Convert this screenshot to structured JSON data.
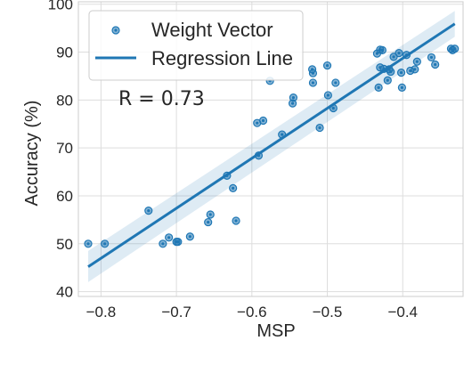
{
  "chart_data": {
    "type": "scatter",
    "xlabel": "MSP",
    "ylabel": "Accuracy (%)",
    "xlim": [
      -0.83,
      -0.32
    ],
    "ylim": [
      39,
      100.5
    ],
    "xticks": [
      -0.8,
      -0.7,
      -0.6,
      -0.5,
      -0.4
    ],
    "xtick_labels": [
      "−0.8",
      "−0.7",
      "−0.6",
      "−0.5",
      "−0.4"
    ],
    "yticks": [
      40,
      50,
      60,
      70,
      80,
      90,
      100
    ],
    "ytick_labels": [
      "40",
      "50",
      "60",
      "70",
      "80",
      "90",
      "100"
    ],
    "grid": true,
    "legend_position": "top-left",
    "annotation": "R = 0.73",
    "series": [
      {
        "name": "Weight Vector",
        "kind": "scatter",
        "color": "#1f77b4",
        "points": [
          [
            -0.817,
            50.0
          ],
          [
            -0.795,
            50.0
          ],
          [
            -0.737,
            56.9
          ],
          [
            -0.718,
            50.0
          ],
          [
            -0.71,
            51.3
          ],
          [
            -0.7,
            50.4
          ],
          [
            -0.698,
            50.4
          ],
          [
            -0.682,
            51.5
          ],
          [
            -0.658,
            54.5
          ],
          [
            -0.655,
            56.1
          ],
          [
            -0.633,
            64.2
          ],
          [
            -0.625,
            61.6
          ],
          [
            -0.621,
            54.8
          ],
          [
            -0.593,
            75.2
          ],
          [
            -0.591,
            68.4
          ],
          [
            -0.585,
            75.7
          ],
          [
            -0.576,
            84.0
          ],
          [
            -0.56,
            72.8
          ],
          [
            -0.546,
            79.3
          ],
          [
            -0.545,
            80.5
          ],
          [
            -0.52,
            86.4
          ],
          [
            -0.519,
            85.6
          ],
          [
            -0.519,
            83.6
          ],
          [
            -0.51,
            74.2
          ],
          [
            -0.5,
            87.2
          ],
          [
            -0.499,
            81.0
          ],
          [
            -0.492,
            78.3
          ],
          [
            -0.489,
            83.6
          ],
          [
            -0.434,
            89.7
          ],
          [
            -0.43,
            90.5
          ],
          [
            -0.427,
            90.4
          ],
          [
            -0.432,
            82.6
          ],
          [
            -0.43,
            86.8
          ],
          [
            -0.425,
            86.5
          ],
          [
            -0.42,
            84.1
          ],
          [
            -0.418,
            86.4
          ],
          [
            -0.416,
            85.9
          ],
          [
            -0.412,
            89.0
          ],
          [
            -0.405,
            89.8
          ],
          [
            -0.402,
            85.7
          ],
          [
            -0.401,
            82.6
          ],
          [
            -0.395,
            89.4
          ],
          [
            -0.39,
            86.1
          ],
          [
            -0.381,
            88.0
          ],
          [
            -0.384,
            86.4
          ],
          [
            -0.362,
            88.9
          ],
          [
            -0.357,
            87.4
          ],
          [
            -0.336,
            90.7
          ],
          [
            -0.334,
            90.4
          ],
          [
            -0.331,
            90.7
          ]
        ]
      },
      {
        "name": "Regression Line",
        "kind": "line",
        "color": "#1f77b4",
        "x": [
          -0.817,
          -0.331
        ],
        "y": [
          45.2,
          95.9
        ],
        "ci_upper": [
          48.5,
          98.6
        ],
        "ci_lower": [
          42.0,
          93.2
        ]
      }
    ]
  }
}
